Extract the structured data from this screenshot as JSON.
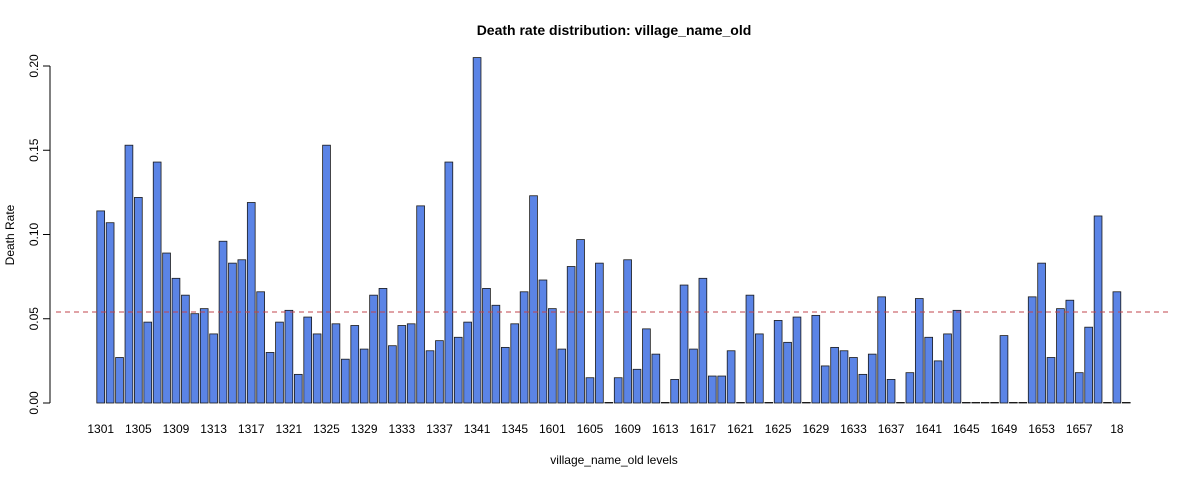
{
  "chart_data": {
    "type": "bar",
    "title": "Death rate distribution: village_name_old",
    "xlabel": "village_name_old levels",
    "ylabel": "Death Rate",
    "ylim": [
      0,
      0.2
    ],
    "yticks": [
      0.0,
      0.05,
      0.1,
      0.15,
      0.2
    ],
    "ytick_labels": [
      "0.00",
      "0.05",
      "0.10",
      "0.15",
      "0.20"
    ],
    "reference_line": {
      "value": 0.054,
      "style": "dashed"
    },
    "xtick_labels": [
      "1301",
      "1305",
      "1309",
      "1313",
      "1317",
      "1321",
      "1325",
      "1329",
      "1333",
      "1337",
      "1341",
      "1345",
      "1601",
      "1605",
      "1609",
      "1613",
      "1617",
      "1621",
      "1625",
      "1629",
      "1633",
      "1637",
      "1641",
      "1645",
      "1649",
      "1653",
      "1657",
      "18"
    ],
    "xtick_every": 4,
    "values": [
      0.114,
      0.107,
      0.027,
      0.153,
      0.122,
      0.048,
      0.143,
      0.089,
      0.074,
      0.064,
      0.053,
      0.056,
      0.041,
      0.096,
      0.083,
      0.085,
      0.119,
      0.066,
      0.03,
      0.048,
      0.055,
      0.017,
      0.051,
      0.041,
      0.153,
      0.047,
      0.026,
      0.046,
      0.032,
      0.064,
      0.068,
      0.034,
      0.046,
      0.047,
      0.117,
      0.031,
      0.037,
      0.143,
      0.039,
      0.048,
      0.205,
      0.068,
      0.058,
      0.033,
      0.047,
      0.066,
      0.123,
      0.073,
      0.056,
      0.032,
      0.081,
      0.097,
      0.015,
      0.083,
      0.0,
      0.015,
      0.085,
      0.02,
      0.044,
      0.029,
      0.0,
      0.014,
      0.07,
      0.032,
      0.074,
      0.016,
      0.016,
      0.031,
      0.0,
      0.064,
      0.041,
      0.0,
      0.049,
      0.036,
      0.051,
      0.0,
      0.052,
      0.022,
      0.033,
      0.031,
      0.027,
      0.017,
      0.029,
      0.063,
      0.014,
      0.0,
      0.018,
      0.062,
      0.039,
      0.025,
      0.041,
      0.055,
      0.0,
      0.0,
      0.0,
      0.0,
      0.04,
      0.0,
      0.0,
      0.063,
      0.083,
      0.027,
      0.056,
      0.061,
      0.018,
      0.045,
      0.111,
      0.0,
      0.066,
      0.0
    ]
  },
  "colors": {
    "bar_fill": "#5b84e6",
    "bar_stroke": "#1a1a1a",
    "reference_line": "#c0444e",
    "axis": "#000000"
  }
}
